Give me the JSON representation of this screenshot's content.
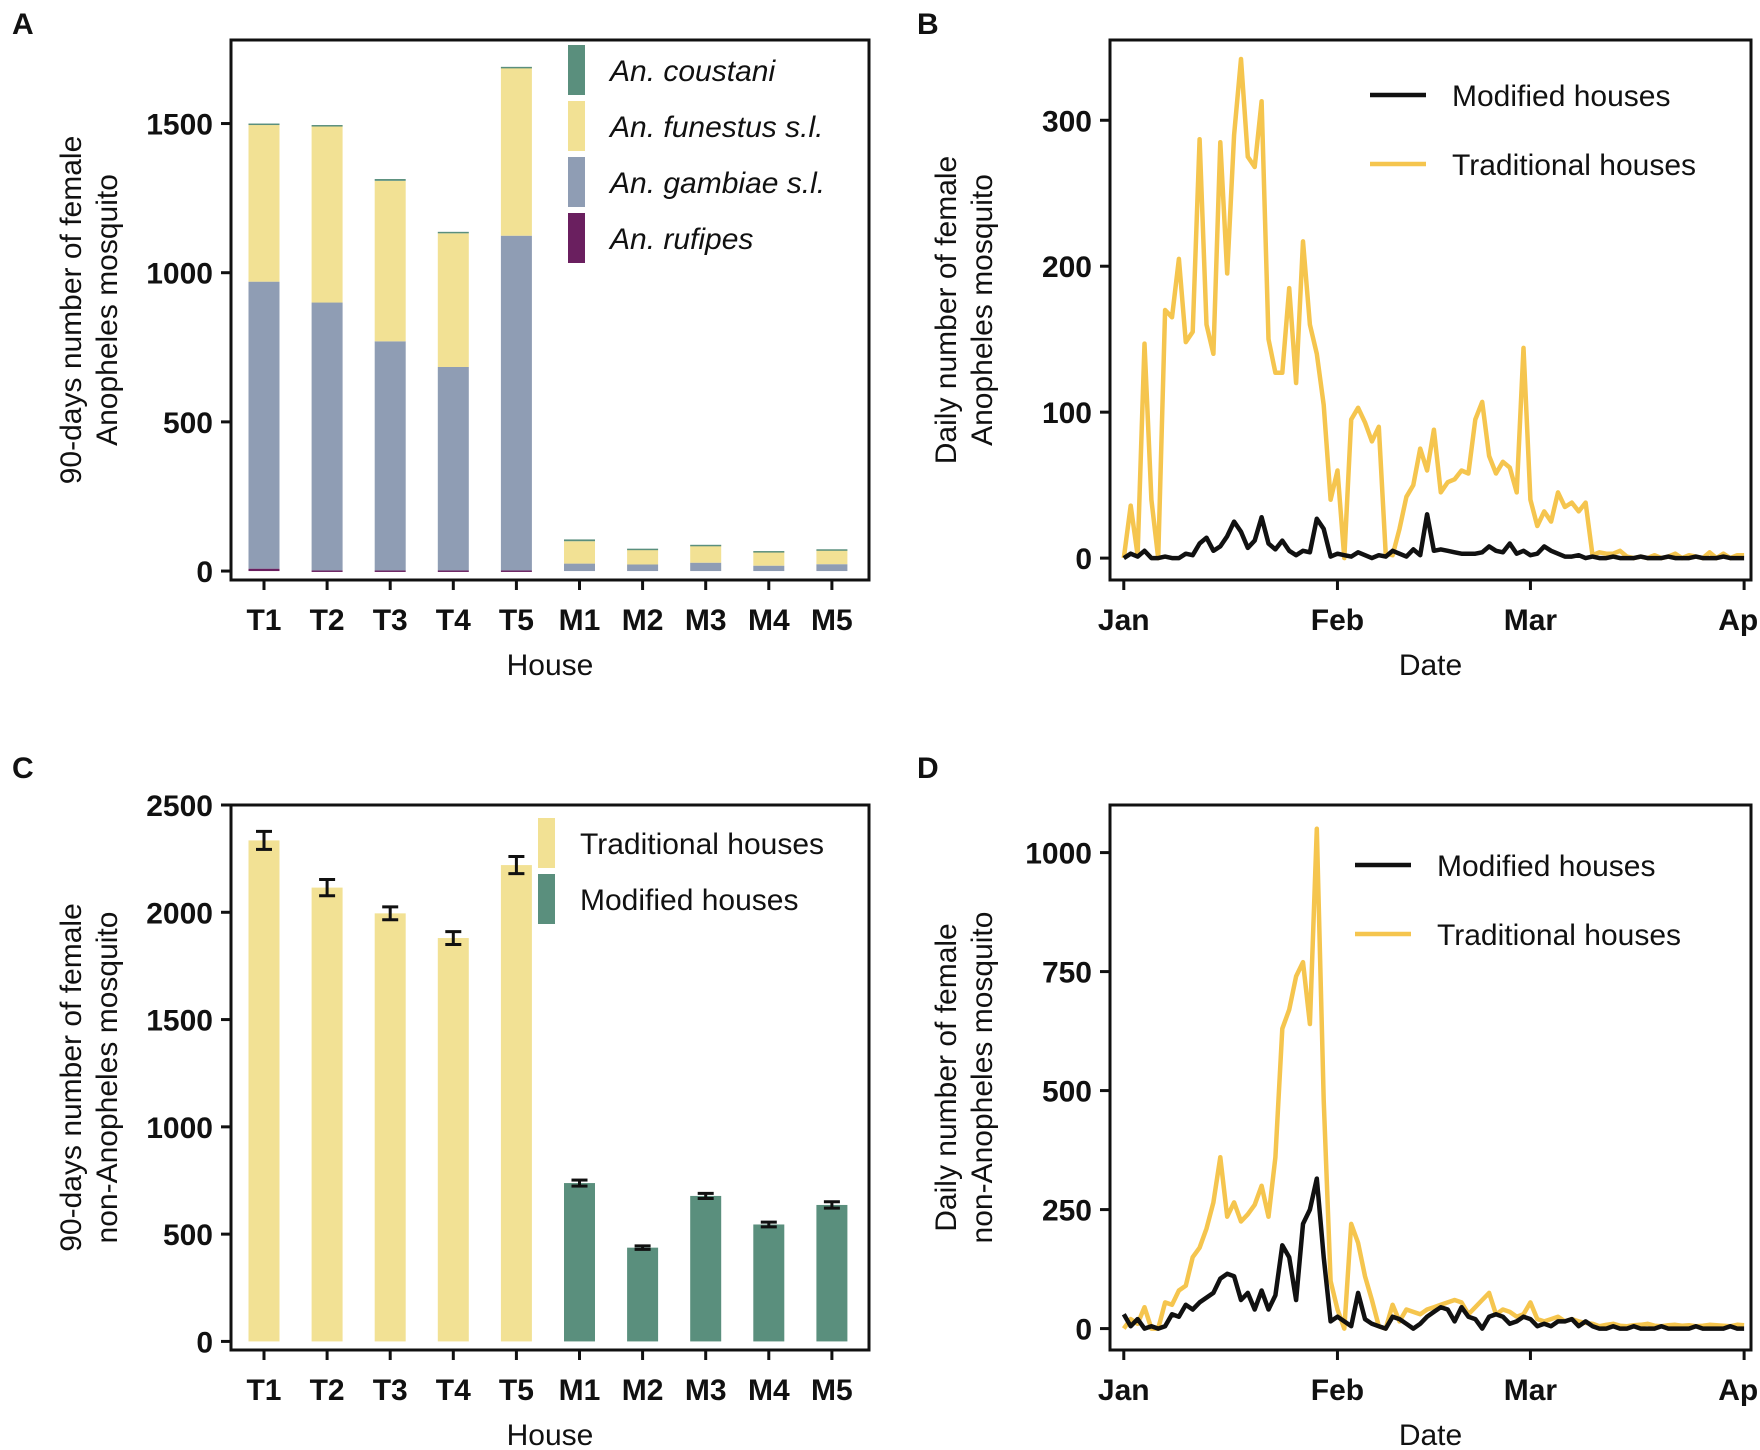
{
  "colors": {
    "coustani": "#5a8f7d",
    "funestus": "#f2e194",
    "gambiae": "#8f9db4",
    "rufipes": "#6a1f5f",
    "traditional": "#f5c54e",
    "modified": "#111111",
    "bar_traditional": "#f2e194",
    "bar_modified": "#5a8f7d"
  },
  "chart_data": [
    {
      "id": "A",
      "panel_letter": "A",
      "type": "bar",
      "stacked": true,
      "title": "",
      "xlabel": "House",
      "ylabel_lines": [
        "90-days number of female",
        "Anopheles mosquito"
      ],
      "ylim": [
        -30,
        1780
      ],
      "yticks": [
        0,
        500,
        1000,
        1500
      ],
      "categories": [
        "T1",
        "T2",
        "T3",
        "T4",
        "T5",
        "M1",
        "M2",
        "M3",
        "M4",
        "M5"
      ],
      "legend_placement": "top-right",
      "series": [
        {
          "name": "An. rufipes",
          "key": "rufipes",
          "values": [
            8,
            2,
            2,
            2,
            2,
            0,
            0,
            0,
            0,
            0
          ]
        },
        {
          "name": "An. gambiae s.l.",
          "key": "gambiae",
          "values": [
            962,
            898,
            768,
            682,
            1122,
            25,
            22,
            28,
            18,
            23
          ]
        },
        {
          "name": "An. funestus s.l.",
          "key": "funestus",
          "values": [
            525,
            592,
            538,
            448,
            565,
            75,
            50,
            58,
            47,
            48
          ]
        },
        {
          "name": "An. coustani",
          "key": "coustani",
          "values": [
            5,
            3,
            6,
            5,
            1,
            6,
            3,
            2,
            2,
            2
          ]
        }
      ],
      "legend_order": [
        "An. coustani",
        "An. funestus s.l.",
        "An. gambiae s.l.",
        "An. rufipes"
      ]
    },
    {
      "id": "B",
      "panel_letter": "B",
      "type": "line",
      "title": "",
      "xlabel": "Date",
      "ylabel_lines": [
        "Daily number of female",
        "Anopheles mosquito"
      ],
      "xlim": [
        -2,
        91
      ],
      "ylim": [
        -15,
        355
      ],
      "yticks": [
        0,
        100,
        200,
        300
      ],
      "xtick_labels": [
        "Jan",
        "Feb",
        "Mar",
        "Apr"
      ],
      "xtick_positions": [
        0,
        31,
        59,
        90
      ],
      "legend_placement": "top-right",
      "series": [
        {
          "name": "Modified houses",
          "key": "modified",
          "x": [
            0,
            1,
            2,
            3,
            4,
            5,
            6,
            7,
            8,
            9,
            10,
            11,
            12,
            13,
            14,
            15,
            16,
            17,
            18,
            19,
            20,
            21,
            22,
            23,
            24,
            25,
            26,
            27,
            28,
            29,
            30,
            31,
            32,
            33,
            34,
            35,
            36,
            37,
            38,
            39,
            40,
            41,
            42,
            43,
            44,
            45,
            46,
            47,
            48,
            49,
            50,
            51,
            52,
            53,
            54,
            55,
            56,
            57,
            58,
            59,
            60,
            61,
            62,
            63,
            64,
            65,
            66,
            67,
            68,
            69,
            70,
            71,
            72,
            73,
            74,
            75,
            76,
            77,
            78,
            79,
            80,
            81,
            82,
            83,
            84,
            85,
            86,
            87,
            88,
            89,
            90
          ],
          "y": [
            0,
            3,
            1,
            5,
            0,
            0,
            1,
            0,
            0,
            3,
            2,
            10,
            14,
            5,
            8,
            15,
            25,
            18,
            7,
            12,
            28,
            10,
            6,
            12,
            5,
            2,
            5,
            4,
            27,
            20,
            1,
            3,
            2,
            1,
            4,
            2,
            0,
            2,
            1,
            5,
            3,
            1,
            6,
            2,
            30,
            5,
            6,
            5,
            4,
            3,
            3,
            3,
            4,
            8,
            5,
            4,
            10,
            3,
            5,
            2,
            3,
            8,
            5,
            3,
            1,
            1,
            2,
            0,
            1,
            0,
            0,
            1,
            0,
            0,
            0,
            1,
            0,
            0,
            0,
            1,
            0,
            0,
            0,
            1,
            0,
            0,
            0,
            1,
            0,
            0,
            0
          ]
        },
        {
          "name": "Traditional houses",
          "key": "traditional",
          "x": [
            0,
            1,
            2,
            3,
            4,
            5,
            6,
            7,
            8,
            9,
            10,
            11,
            12,
            13,
            14,
            15,
            16,
            17,
            18,
            19,
            20,
            21,
            22,
            23,
            24,
            25,
            26,
            27,
            28,
            29,
            30,
            31,
            32,
            33,
            34,
            35,
            36,
            37,
            38,
            39,
            40,
            41,
            42,
            43,
            44,
            45,
            46,
            47,
            48,
            49,
            50,
            51,
            52,
            53,
            54,
            55,
            56,
            57,
            58,
            59,
            60,
            61,
            62,
            63,
            64,
            65,
            66,
            67,
            68,
            69,
            70,
            71,
            72,
            73,
            74,
            75,
            76,
            77,
            78,
            79,
            80,
            81,
            82,
            83,
            84,
            85,
            86,
            87,
            88,
            89,
            90
          ],
          "y": [
            0,
            36,
            2,
            147,
            40,
            0,
            170,
            165,
            205,
            148,
            155,
            287,
            160,
            140,
            285,
            195,
            290,
            342,
            275,
            268,
            313,
            150,
            127,
            127,
            185,
            120,
            217,
            160,
            140,
            105,
            40,
            60,
            0,
            95,
            103,
            93,
            80,
            90,
            3,
            2,
            20,
            42,
            50,
            75,
            60,
            88,
            45,
            52,
            54,
            60,
            58,
            95,
            107,
            70,
            58,
            66,
            62,
            45,
            144,
            40,
            22,
            32,
            25,
            45,
            35,
            38,
            32,
            38,
            2,
            4,
            3,
            3,
            5,
            1,
            0,
            1,
            0,
            2,
            0,
            1,
            3,
            0,
            2,
            1,
            0,
            4,
            0,
            3,
            0,
            2,
            2
          ]
        }
      ]
    },
    {
      "id": "C",
      "panel_letter": "C",
      "type": "bar",
      "stacked": false,
      "title": "",
      "xlabel": "House",
      "ylabel_lines": [
        "90-days number of female",
        "non-Anopheles mosquito"
      ],
      "ylim": [
        -40,
        2500
      ],
      "yticks": [
        0,
        500,
        1000,
        1500,
        2000,
        2500
      ],
      "categories": [
        "T1",
        "T2",
        "T3",
        "T4",
        "T5",
        "M1",
        "M2",
        "M3",
        "M4",
        "M5"
      ],
      "legend_placement": "top-right",
      "series": [
        {
          "name": "Traditional houses",
          "key": "bar_traditional",
          "values": [
            2335,
            2115,
            1995,
            1880,
            2220,
            null,
            null,
            null,
            null,
            null
          ],
          "errors": [
            42,
            38,
            30,
            30,
            40,
            null,
            null,
            null,
            null,
            null
          ]
        },
        {
          "name": "Modified houses",
          "key": "bar_modified",
          "values": [
            null,
            null,
            null,
            null,
            null,
            738,
            437,
            678,
            545,
            636
          ],
          "errors": [
            null,
            null,
            null,
            null,
            null,
            14,
            8,
            12,
            11,
            15
          ]
        }
      ]
    },
    {
      "id": "D",
      "panel_letter": "D",
      "type": "line",
      "title": "",
      "xlabel": "Date",
      "ylabel_lines": [
        "Daily number of female",
        "non-Anopheles mosquito"
      ],
      "xlim": [
        -2,
        91
      ],
      "ylim": [
        -45,
        1100
      ],
      "yticks": [
        0,
        250,
        500,
        750,
        1000
      ],
      "xtick_labels": [
        "Jan",
        "Feb",
        "Mar",
        "Apr"
      ],
      "xtick_positions": [
        0,
        31,
        59,
        90
      ],
      "legend_placement": "top-right",
      "series": [
        {
          "name": "Modified houses",
          "key": "modified",
          "x": [
            0,
            1,
            2,
            3,
            4,
            5,
            6,
            7,
            8,
            9,
            10,
            11,
            12,
            13,
            14,
            15,
            16,
            17,
            18,
            19,
            20,
            21,
            22,
            23,
            24,
            25,
            26,
            27,
            28,
            29,
            30,
            31,
            32,
            33,
            34,
            35,
            36,
            37,
            38,
            39,
            40,
            41,
            42,
            43,
            44,
            45,
            46,
            47,
            48,
            49,
            50,
            51,
            52,
            53,
            54,
            55,
            56,
            57,
            58,
            59,
            60,
            61,
            62,
            63,
            64,
            65,
            66,
            67,
            68,
            69,
            70,
            71,
            72,
            73,
            74,
            75,
            76,
            77,
            78,
            79,
            80,
            81,
            82,
            83,
            84,
            85,
            86,
            87,
            88,
            89,
            90
          ],
          "y": [
            30,
            5,
            20,
            0,
            5,
            0,
            5,
            30,
            25,
            50,
            40,
            55,
            65,
            75,
            105,
            115,
            110,
            60,
            75,
            40,
            80,
            40,
            70,
            175,
            150,
            60,
            220,
            250,
            315,
            150,
            15,
            25,
            15,
            5,
            75,
            20,
            10,
            5,
            0,
            25,
            20,
            10,
            0,
            10,
            25,
            35,
            45,
            40,
            15,
            45,
            25,
            20,
            0,
            25,
            30,
            25,
            10,
            15,
            25,
            20,
            5,
            10,
            5,
            15,
            15,
            20,
            5,
            15,
            5,
            0,
            0,
            5,
            0,
            0,
            5,
            0,
            0,
            0,
            5,
            0,
            0,
            0,
            0,
            5,
            0,
            0,
            0,
            0,
            5,
            0,
            0
          ]
        },
        {
          "name": "Traditional houses",
          "key": "traditional",
          "x": [
            0,
            1,
            2,
            3,
            4,
            5,
            6,
            7,
            8,
            9,
            10,
            11,
            12,
            13,
            14,
            15,
            16,
            17,
            18,
            19,
            20,
            21,
            22,
            23,
            24,
            25,
            26,
            27,
            28,
            29,
            30,
            31,
            32,
            33,
            34,
            35,
            36,
            37,
            38,
            39,
            40,
            41,
            42,
            43,
            44,
            45,
            46,
            47,
            48,
            49,
            50,
            51,
            52,
            53,
            54,
            55,
            56,
            57,
            58,
            59,
            60,
            61,
            62,
            63,
            64,
            65,
            66,
            67,
            68,
            69,
            70,
            71,
            72,
            73,
            74,
            75,
            76,
            77,
            78,
            79,
            80,
            81,
            82,
            83,
            84,
            85,
            86,
            87,
            88,
            89,
            90
          ],
          "y": [
            0,
            20,
            10,
            45,
            0,
            0,
            55,
            50,
            80,
            90,
            150,
            170,
            210,
            265,
            360,
            235,
            265,
            225,
            240,
            260,
            300,
            235,
            360,
            630,
            670,
            740,
            770,
            640,
            1050,
            480,
            100,
            40,
            0,
            220,
            180,
            110,
            60,
            5,
            0,
            50,
            15,
            40,
            35,
            30,
            40,
            45,
            50,
            55,
            60,
            55,
            30,
            45,
            60,
            75,
            30,
            40,
            35,
            25,
            30,
            55,
            20,
            15,
            20,
            25,
            15,
            20,
            15,
            12,
            10,
            5,
            8,
            10,
            6,
            5,
            7,
            8,
            10,
            6,
            5,
            7,
            8,
            6,
            7,
            5,
            6,
            8,
            7,
            6,
            5,
            8,
            7
          ]
        }
      ]
    }
  ]
}
